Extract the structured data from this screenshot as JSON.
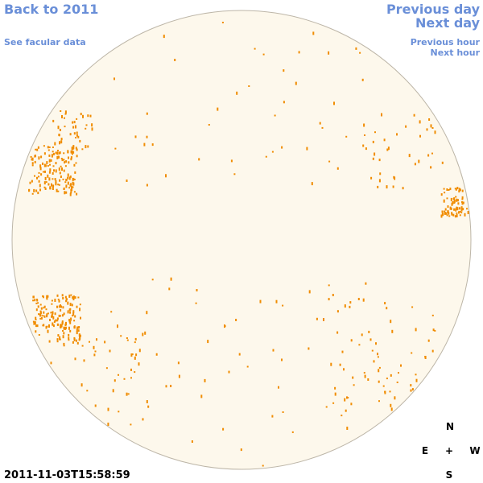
{
  "nav": {
    "back": "Back to 2011",
    "facular": "See facular data",
    "previous_day": "Previous day",
    "next_day": "Next day",
    "previous_hour": "Previous hour",
    "next_hour": "Next hour"
  },
  "timestamp": "2011-11-03T15:58:59",
  "compass": {
    "north": "N",
    "east": "E",
    "center": "+",
    "west": "W",
    "south": "S"
  }
}
